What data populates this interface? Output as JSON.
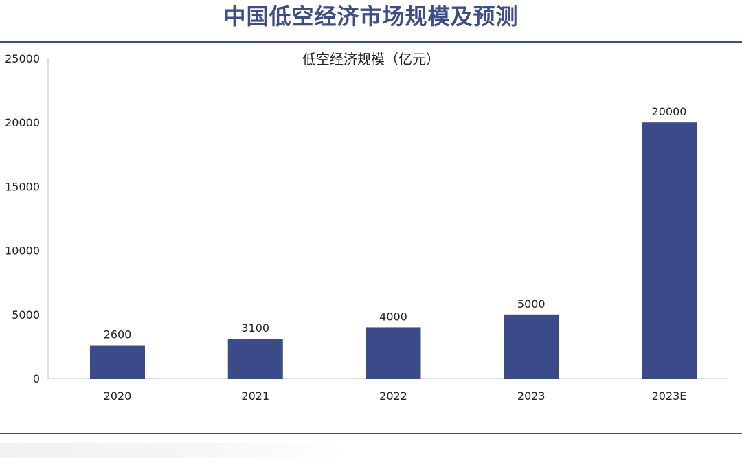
{
  "page": {
    "title": "中国低空经济市场规模及预测"
  },
  "colors": {
    "accent": "#3c4d8a",
    "bar": "#3b4a89",
    "axis": "#bfbfbf",
    "text": "#222222"
  },
  "chart_data": {
    "type": "bar",
    "title": "低空经济规模（亿元）",
    "xlabel": "",
    "ylabel": "",
    "categories": [
      "2020",
      "2021",
      "2022",
      "2023",
      "2023E"
    ],
    "values": [
      2600,
      3100,
      4000,
      5000,
      20000
    ],
    "data_labels": [
      "2600",
      "3100",
      "4000",
      "5000",
      "20000"
    ],
    "ylim": [
      0,
      25000
    ],
    "yticks": [
      0,
      5000,
      10000,
      15000,
      20000,
      25000
    ],
    "ytick_labels": [
      "0",
      "5000",
      "10000",
      "15000",
      "20000",
      "25000"
    ],
    "grid": false,
    "legend": "none"
  }
}
